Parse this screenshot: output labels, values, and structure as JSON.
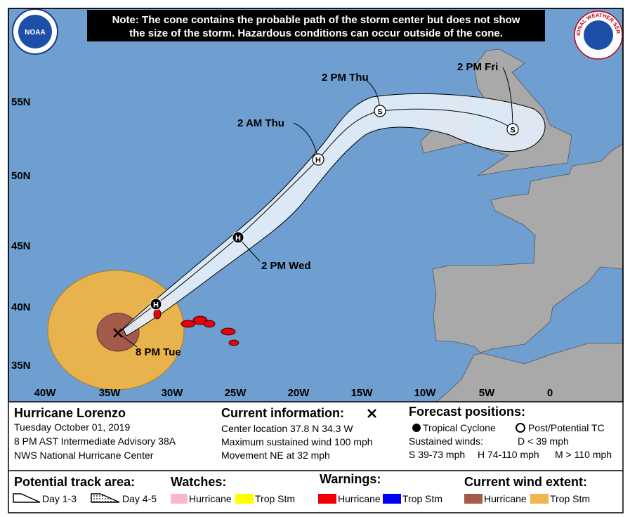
{
  "note": [
    "Note: The cone contains the probable path of the storm center but does not show",
    "the size of the storm. Hazardous conditions can occur outside of the cone."
  ],
  "logos": {
    "noaa": "NOAA",
    "nws": "NATIONAL WEATHER SERVICE"
  },
  "map": {
    "latitude_labels": [
      "55N",
      "50N",
      "45N",
      "40N",
      "35N"
    ],
    "longitude_labels": [
      "40W",
      "35W",
      "30W",
      "25W",
      "20W",
      "15W",
      "10W",
      "5W",
      "0"
    ],
    "current_label": "8 PM Tue",
    "forecast_points": [
      {
        "symbol": "H"
      },
      {
        "symbol": "H",
        "label": "2 PM Wed"
      },
      {
        "symbol": "H",
        "label": "2 AM Thu"
      },
      {
        "symbol": "S",
        "label": "2 PM Thu"
      },
      {
        "symbol": "S",
        "label": "2 PM Fri"
      }
    ]
  },
  "storm": {
    "title": "Hurricane Lorenzo",
    "date": "Tuesday October 01, 2019",
    "advisory": "8 PM AST Intermediate Advisory 38A",
    "center": "NWS National Hurricane Center"
  },
  "current_information": {
    "heading": "Current information:",
    "lines": [
      "Center location 37.8 N 34.3 W",
      "Maximum sustained wind 100 mph",
      "Movement NE at 32 mph"
    ]
  },
  "forecast_positions": {
    "heading": "Forecast positions:",
    "tropical_cyclone": "Tropical Cyclone",
    "post_tc": "Post/Potential TC",
    "sustained_winds": "Sustained winds:",
    "d": "D < 39 mph",
    "s": "S 39-73 mph",
    "h": "H 74-110 mph",
    "m": "M > 110 mph"
  },
  "legend": {
    "track_area": {
      "heading": "Potential track area:",
      "items": [
        "Day 1-3",
        "Day 4-5"
      ]
    },
    "watches": {
      "heading": "Watches:",
      "items": [
        "Hurricane",
        "Trop Stm"
      ]
    },
    "warnings": {
      "heading": "Warnings:",
      "items": [
        "Hurricane",
        "Trop Stm"
      ]
    },
    "wind_extent": {
      "heading": "Current wind extent:",
      "items": [
        "Hurricane",
        "Trop Stm"
      ]
    }
  }
}
